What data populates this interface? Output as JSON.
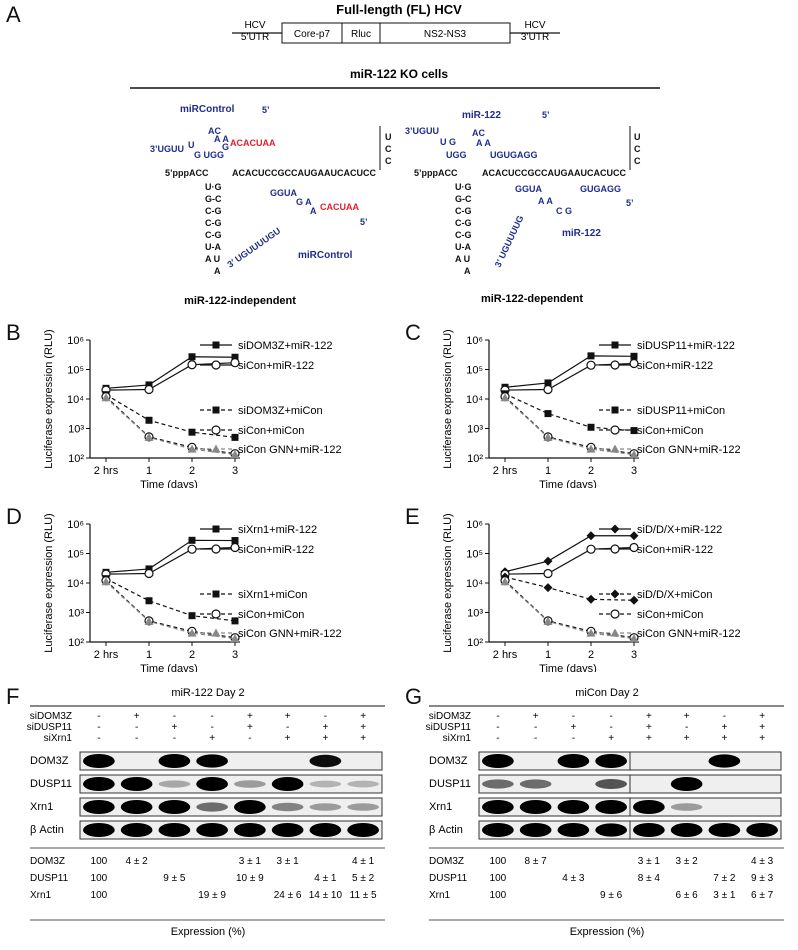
{
  "panelA": {
    "letter": "A",
    "construct_title": "Full-length (FL) HCV",
    "construct_segments": [
      "HCV",
      "5’UTR",
      "Core-p7",
      "Rluc",
      "NS2-NS3",
      "HCV",
      "3’UTR"
    ],
    "cells_title": "miR-122 KO cells",
    "left_caption": "miR-122-independent",
    "right_caption": "miR-122-dependent",
    "left_label_top": "miRControl",
    "left_label_bottom": "miRControl",
    "right_label_top": "miR-122",
    "right_label_bottom": "miR-122",
    "seq_5prime": "5’pppACC",
    "seq_main": "ACACUCCGCCAUGAAUCACUCC",
    "red_top": "ACACUAA",
    "red_bottom": "CACUAA"
  },
  "panels": [
    {
      "letter": "B",
      "chart_data": {
        "type": "line",
        "x": [
          "2 hrs",
          "1",
          "2",
          "3"
        ],
        "xlabel": "Time (days)",
        "ylabel": "Luciferase expression (RLU)",
        "yscale": "log",
        "ylim": [
          100,
          1000000
        ],
        "yticks": [
          "10²",
          "10³",
          "10⁴",
          "10⁵",
          "10⁶"
        ],
        "series": [
          {
            "name": "siDOM3Z+miR-122",
            "values": [
              23000,
              30000,
              270000,
              260000
            ],
            "marker": "square",
            "dash": false
          },
          {
            "name": "siCon+miR-122",
            "values": [
              20000,
              21000,
              145000,
              170000
            ],
            "marker": "circle",
            "dash": false
          },
          {
            "name": "siDOM3Z+miCon",
            "values": [
              14000,
              1900,
              750,
              500
            ],
            "marker": "square",
            "dash": true
          },
          {
            "name": "siCon+miCon",
            "values": [
              12000,
              520,
              230,
              140
            ],
            "marker": "circle",
            "dash": true
          },
          {
            "name": "siCon GNN+miR-122",
            "values": [
              11000,
              500,
              200,
              130
            ],
            "marker": "triangle",
            "dash": true
          }
        ]
      }
    },
    {
      "letter": "C",
      "chart_data": {
        "type": "line",
        "x": [
          "2 hrs",
          "1",
          "2",
          "3"
        ],
        "xlabel": "Time (days)",
        "ylabel": "Luciferase expression (RLU)",
        "yscale": "log",
        "ylim": [
          100,
          1000000
        ],
        "yticks": [
          "10²",
          "10³",
          "10⁴",
          "10⁵",
          "10⁶"
        ],
        "series": [
          {
            "name": "siDUSP11+miR-122",
            "values": [
              25000,
              35000,
              290000,
              280000
            ],
            "marker": "square",
            "dash": false
          },
          {
            "name": "siCon+miR-122",
            "values": [
              20000,
              21000,
              140000,
              160000
            ],
            "marker": "circle",
            "dash": false
          },
          {
            "name": "siDUSP11+miCon",
            "values": [
              15000,
              3200,
              1100,
              850
            ],
            "marker": "square",
            "dash": true
          },
          {
            "name": "siCon+miCon",
            "values": [
              12000,
              520,
              230,
              140
            ],
            "marker": "circle",
            "dash": true
          },
          {
            "name": "siCon GNN+miR-122",
            "values": [
              11000,
              500,
              200,
              130
            ],
            "marker": "triangle",
            "dash": true
          }
        ]
      }
    },
    {
      "letter": "D",
      "chart_data": {
        "type": "line",
        "x": [
          "2 hrs",
          "1",
          "2",
          "3"
        ],
        "xlabel": "Time (days)",
        "ylabel": "Luciferase expression (RLU)",
        "yscale": "log",
        "ylim": [
          100,
          1000000
        ],
        "yticks": [
          "10²",
          "10³",
          "10⁴",
          "10⁵",
          "10⁶"
        ],
        "series": [
          {
            "name": "siXrn1+miR-122",
            "values": [
              23000,
              30000,
              280000,
              275000
            ],
            "marker": "square",
            "dash": false
          },
          {
            "name": "siCon+miR-122",
            "values": [
              20000,
              21000,
              140000,
              160000
            ],
            "marker": "circle",
            "dash": false
          },
          {
            "name": "siXrn1+miCon",
            "values": [
              14000,
              2500,
              780,
              520
            ],
            "marker": "square",
            "dash": true
          },
          {
            "name": "siCon+miCon",
            "values": [
              12000,
              520,
              230,
              140
            ],
            "marker": "circle",
            "dash": true
          },
          {
            "name": "siCon GNN+miR-122",
            "values": [
              11000,
              500,
              200,
              130
            ],
            "marker": "triangle",
            "dash": true
          }
        ]
      }
    },
    {
      "letter": "E",
      "chart_data": {
        "type": "line",
        "x": [
          "2 hrs",
          "1",
          "2",
          "3"
        ],
        "xlabel": "Time (days)",
        "ylabel": "Luciferase expression (RLU)",
        "yscale": "log",
        "ylim": [
          100,
          1000000
        ],
        "yticks": [
          "10²",
          "10³",
          "10⁴",
          "10⁵",
          "10⁶"
        ],
        "series": [
          {
            "name": "siD/D/X+miR-122",
            "values": [
              24000,
              55000,
              400000,
              400000
            ],
            "marker": "diamond",
            "dash": false
          },
          {
            "name": "siCon+miR-122",
            "values": [
              20000,
              21000,
              140000,
              160000
            ],
            "marker": "circle",
            "dash": false
          },
          {
            "name": "siD/D/X+miCon",
            "values": [
              16000,
              7000,
              2800,
              2600
            ],
            "marker": "diamond",
            "dash": true
          },
          {
            "name": "siCon+miCon",
            "values": [
              12000,
              520,
              230,
              140
            ],
            "marker": "circle",
            "dash": true
          },
          {
            "name": "siCon GNN+miR-122",
            "values": [
              11000,
              500,
              200,
              130
            ],
            "marker": "triangle",
            "dash": true
          }
        ]
      }
    }
  ],
  "blots": [
    {
      "letter": "F",
      "title": "miR-122 Day 2",
      "conditions": [
        {
          "label": "siDOM3Z",
          "values": [
            "-",
            "+",
            "-",
            "-",
            "+",
            "+",
            "-",
            "+"
          ]
        },
        {
          "label": "siDUSP11",
          "values": [
            "-",
            "-",
            "+",
            "-",
            "+",
            "-",
            "+",
            "+"
          ]
        },
        {
          "label": "siXrn1",
          "values": [
            "-",
            "-",
            "-",
            "+",
            "-",
            "+",
            "+",
            "+"
          ]
        }
      ],
      "bands": [
        "DOM3Z",
        "DUSP11",
        "Xrn1",
        "β Actin"
      ],
      "band_intensity": [
        [
          1,
          0,
          1,
          0.9,
          0,
          0,
          0.8,
          0
        ],
        [
          1,
          1,
          0.15,
          1,
          0.2,
          1,
          0.1,
          0.1
        ],
        [
          1,
          1,
          1,
          0.4,
          1,
          0.3,
          0.2,
          0.2
        ],
        [
          1,
          1,
          1,
          1,
          1,
          1,
          1,
          1
        ]
      ],
      "split": false,
      "quant": [
        {
          "label": "DOM3Z",
          "values": [
            "100",
            "4 ± 2",
            "",
            "",
            "3 ± 1",
            "3 ± 1",
            "",
            "4 ± 1"
          ]
        },
        {
          "label": "DUSP11",
          "values": [
            "100",
            "",
            "9 ± 5",
            "",
            "10 ± 9",
            "",
            "4 ± 1",
            "5 ± 2"
          ]
        },
        {
          "label": "Xrn1",
          "values": [
            "100",
            "",
            "",
            "19 ± 9",
            "",
            "24 ± 6",
            "14 ± 10",
            "11 ± 5"
          ]
        }
      ],
      "xlabel": "Expression (%)"
    },
    {
      "letter": "G",
      "title": "miCon Day 2",
      "conditions": [
        {
          "label": "siDOM3Z",
          "values": [
            "-",
            "+",
            "-",
            "-",
            "+",
            "+",
            "-",
            "+"
          ]
        },
        {
          "label": "siDUSP11",
          "values": [
            "-",
            "-",
            "+",
            "-",
            "+",
            "-",
            "+",
            "+"
          ]
        },
        {
          "label": "siXrn1",
          "values": [
            "-",
            "-",
            "-",
            "+",
            "+",
            "+",
            "+",
            "+"
          ]
        }
      ],
      "bands": [
        "DOM3Z",
        "DUSP11",
        "Xrn1",
        "β Actin"
      ],
      "band_intensity": [
        [
          1,
          0,
          1,
          1,
          0,
          0,
          0.9,
          0
        ],
        [
          0.4,
          0.4,
          0,
          0.5,
          0,
          1,
          0,
          0
        ],
        [
          1,
          1,
          1,
          1,
          1,
          0.2,
          0,
          0
        ],
        [
          1,
          1,
          1,
          0.9,
          1,
          1,
          1,
          1
        ]
      ],
      "split": true,
      "quant": [
        {
          "label": "DOM3Z",
          "values": [
            "100",
            "8 ± 7",
            "",
            "",
            "3 ± 1",
            "3 ± 2",
            "",
            "4 ± 3"
          ]
        },
        {
          "label": "DUSP11",
          "values": [
            "100",
            "",
            "4 ± 3",
            "",
            "8 ± 4",
            "",
            "7 ± 2",
            "9 ± 3"
          ]
        },
        {
          "label": "Xrn1",
          "values": [
            "100",
            "",
            "",
            "9 ± 6",
            "",
            "6 ± 6",
            "3 ± 1",
            "6 ± 7"
          ]
        }
      ],
      "xlabel": "Expression (%)"
    }
  ]
}
